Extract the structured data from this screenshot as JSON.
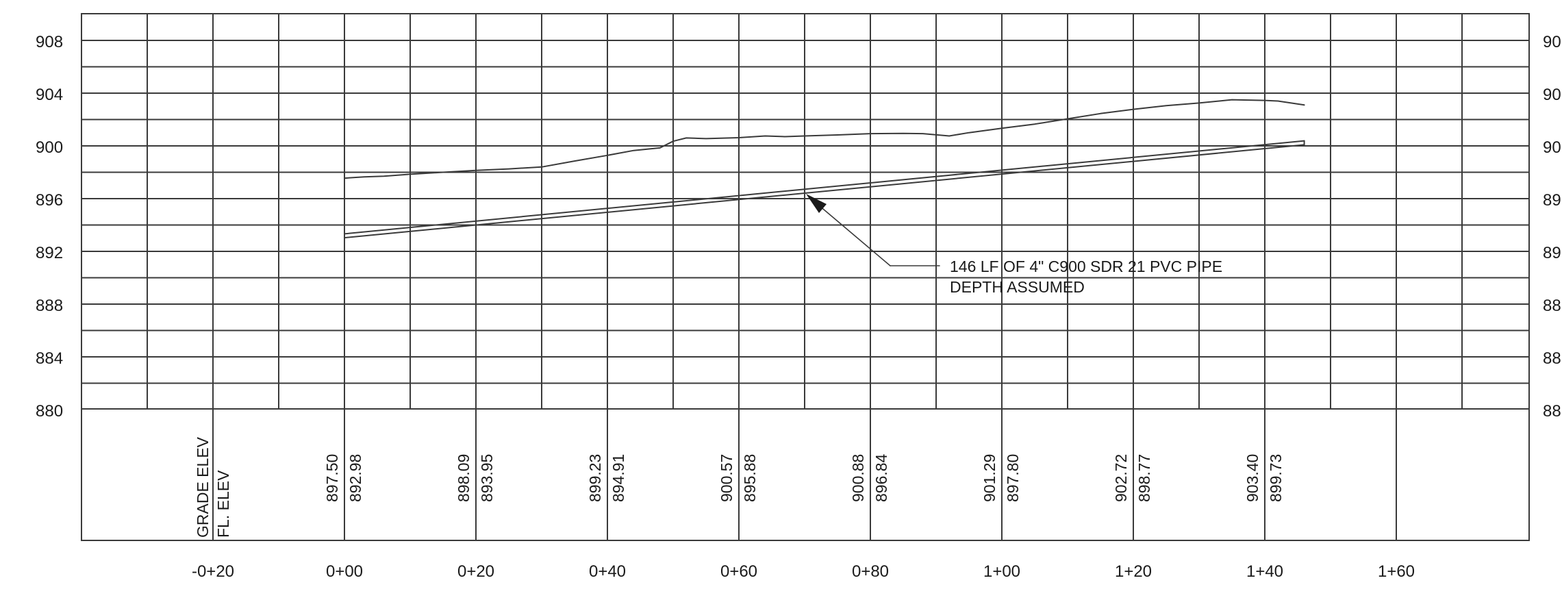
{
  "chart_data": {
    "type": "line",
    "elevation_labels": [
      "908",
      "904",
      "900",
      "896",
      "892",
      "888",
      "884",
      "880"
    ],
    "right_labels": [
      "90",
      "90",
      "90",
      "89",
      "89",
      "88",
      "88",
      "88"
    ],
    "ylim": [
      880,
      910
    ],
    "station_labels": [
      "-0+20",
      "0+00",
      "0+20",
      "0+40",
      "0+60",
      "0+80",
      "1+00",
      "1+20",
      "1+40",
      "1+60"
    ],
    "xlim": [
      -40,
      180
    ],
    "row_headers": {
      "grade": "GRADE ELEV",
      "flowline": "FL. ELEV"
    },
    "table": [
      {
        "station": 0,
        "grade": "897.50",
        "fl": "892.98"
      },
      {
        "station": 20,
        "grade": "898.09",
        "fl": "893.95"
      },
      {
        "station": 40,
        "grade": "899.23",
        "fl": "894.91"
      },
      {
        "station": 60,
        "grade": "900.57",
        "fl": "895.88"
      },
      {
        "station": 80,
        "grade": "900.88",
        "fl": "896.84"
      },
      {
        "station": 100,
        "grade": "901.29",
        "fl": "897.80"
      },
      {
        "station": 120,
        "grade": "902.72",
        "fl": "898.77"
      },
      {
        "station": 140,
        "grade": "903.40",
        "fl": "899.73"
      }
    ],
    "series": [
      {
        "key": "grade",
        "x": [
          0,
          3,
          6,
          10,
          15,
          20,
          25,
          30,
          35,
          40,
          44,
          48,
          50,
          52,
          55,
          60,
          64,
          67,
          70,
          75,
          80,
          85,
          88,
          92,
          95,
          100,
          105,
          110,
          115,
          120,
          125,
          130,
          135,
          140,
          142,
          146
        ],
        "y": [
          897.5,
          897.6,
          897.65,
          897.8,
          897.95,
          898.09,
          898.2,
          898.35,
          898.8,
          899.23,
          899.6,
          899.8,
          900.3,
          900.55,
          900.5,
          900.57,
          900.7,
          900.65,
          900.7,
          900.78,
          900.88,
          900.9,
          900.88,
          900.7,
          900.95,
          901.29,
          901.6,
          902.0,
          902.4,
          902.72,
          903.0,
          903.2,
          903.45,
          903.4,
          903.35,
          903.05
        ]
      },
      {
        "key": "pipe_top",
        "x": [
          0,
          146
        ],
        "y": [
          893.28,
          900.33
        ]
      },
      {
        "key": "pipe_bottom",
        "x": [
          0,
          146
        ],
        "y": [
          892.98,
          900.03
        ]
      }
    ],
    "annotation": {
      "lines": [
        "146 LF OF 4\" C900 SDR 21 PVC PIPE",
        "DEPTH ASSUMED"
      ],
      "target_station": 70,
      "target_elevation": 896.35
    }
  }
}
